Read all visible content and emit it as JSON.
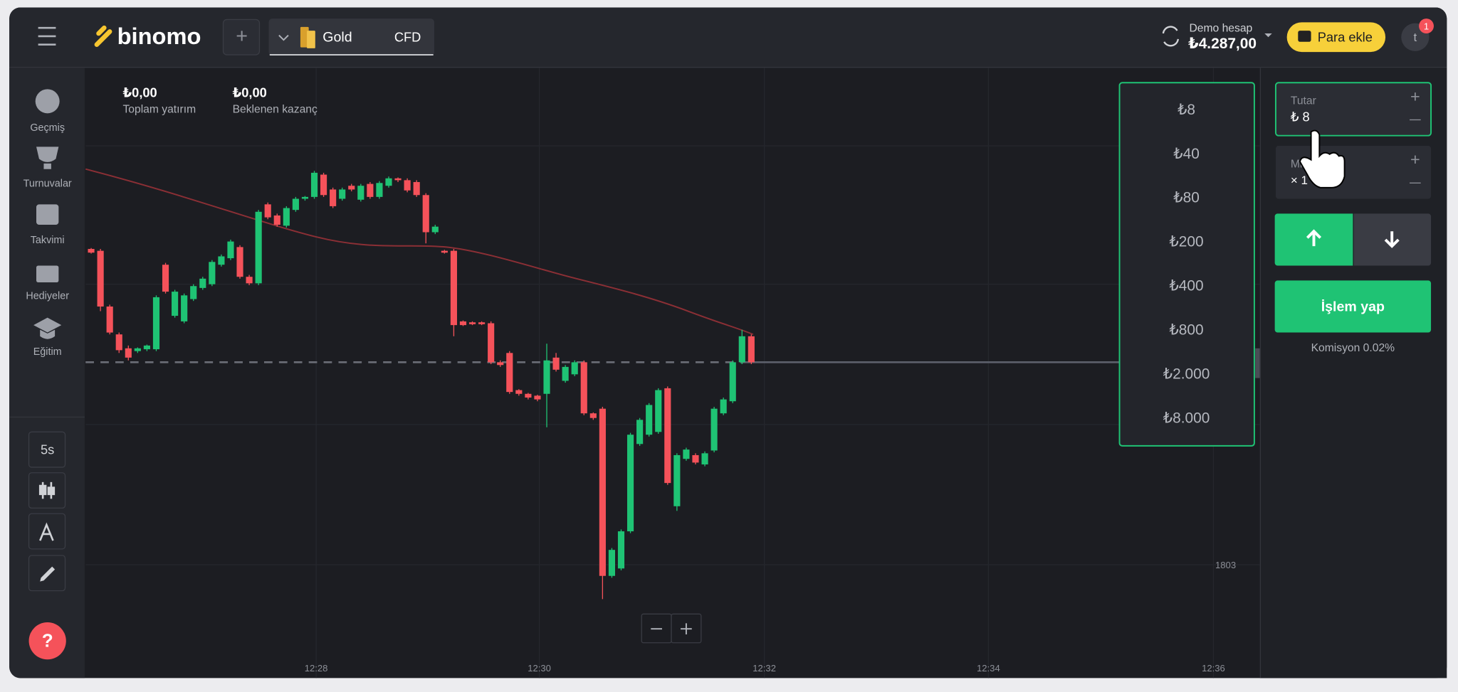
{
  "header": {
    "logo": "binomo",
    "asset": "Gold",
    "asset_type": "CFD",
    "account_label": "Demo hesap",
    "balance": "₺4.287,00",
    "deposit_button": "Para ekle",
    "avatar": "t",
    "notification_badge": "1"
  },
  "sidebar": {
    "items": [
      "Geçmiş",
      "Turnuvalar",
      "Takvimi",
      "Hediyeler",
      "Eğitim"
    ],
    "timeframe": "5s"
  },
  "stats": [
    {
      "value": "₺0,00",
      "label": "Toplam yatırım"
    },
    {
      "value": "₺0,00",
      "label": "Beklenen kazanç"
    }
  ],
  "chart": {
    "y_labels": [
      "1803"
    ],
    "x_labels": [
      "12:28",
      "12:30",
      "12:32",
      "12:34",
      "12:36"
    ]
  },
  "amount_dropdown": [
    "₺8",
    "₺40",
    "₺80",
    "₺200",
    "₺400",
    "₺800",
    "₺2.000",
    "₺8.000"
  ],
  "trade_panel": {
    "amount_label": "Tutar",
    "amount": "₺ 8",
    "multiplier_label": "Mi",
    "multiplier": "× 1",
    "trade_button": "İşlem yap",
    "commission": "Komisyon 0.02%"
  }
}
